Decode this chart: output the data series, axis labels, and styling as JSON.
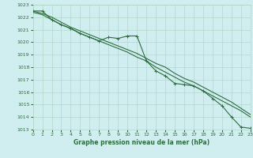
{
  "xlabel": "Graphe pression niveau de la mer (hPa)",
  "ylim": [
    1013,
    1023
  ],
  "xlim": [
    0,
    23
  ],
  "yticks": [
    1013,
    1014,
    1015,
    1016,
    1017,
    1018,
    1019,
    1020,
    1021,
    1022,
    1023
  ],
  "xticks": [
    0,
    1,
    2,
    3,
    4,
    5,
    6,
    7,
    8,
    9,
    10,
    11,
    12,
    13,
    14,
    15,
    16,
    17,
    18,
    19,
    20,
    21,
    22,
    23
  ],
  "bg_color": "#d0eef0",
  "grid_color": "#b0d8c8",
  "line_color": "#2d6e3e",
  "line1_x": [
    0,
    1,
    2,
    3,
    4,
    5,
    6,
    7,
    8,
    9,
    10,
    11,
    12,
    13,
    14,
    15,
    16,
    17,
    18,
    19,
    20,
    21,
    22,
    23
  ],
  "line1_y": [
    1022.5,
    1022.5,
    1021.8,
    1021.4,
    1021.1,
    1020.7,
    1020.4,
    1020.1,
    1020.4,
    1020.3,
    1020.5,
    1020.5,
    1018.5,
    1017.7,
    1017.3,
    1016.7,
    1016.6,
    1016.5,
    1016.1,
    1015.5,
    1014.9,
    1014.0,
    1013.2,
    1013.1
  ],
  "line2_x": [
    0,
    1,
    2,
    3,
    4,
    5,
    6,
    7,
    8,
    9,
    10,
    11,
    12,
    13,
    14,
    15,
    16,
    17,
    18,
    19,
    20,
    21,
    22,
    23
  ],
  "line2_y": [
    1022.4,
    1022.2,
    1021.8,
    1021.4,
    1021.1,
    1020.7,
    1020.4,
    1020.1,
    1019.8,
    1019.5,
    1019.2,
    1018.8,
    1018.5,
    1018.0,
    1017.6,
    1017.2,
    1016.8,
    1016.5,
    1016.1,
    1015.7,
    1015.3,
    1014.9,
    1014.5,
    1014.0
  ],
  "line3_x": [
    0,
    1,
    2,
    3,
    4,
    5,
    6,
    7,
    8,
    9,
    10,
    11,
    12,
    13,
    14,
    15,
    16,
    17,
    18,
    19,
    20,
    21,
    22,
    23
  ],
  "line3_y": [
    1022.5,
    1022.3,
    1022.0,
    1021.6,
    1021.2,
    1020.9,
    1020.6,
    1020.3,
    1020.0,
    1019.7,
    1019.4,
    1019.1,
    1018.7,
    1018.3,
    1018.0,
    1017.5,
    1017.1,
    1016.8,
    1016.4,
    1016.0,
    1015.6,
    1015.2,
    1014.7,
    1014.2
  ]
}
